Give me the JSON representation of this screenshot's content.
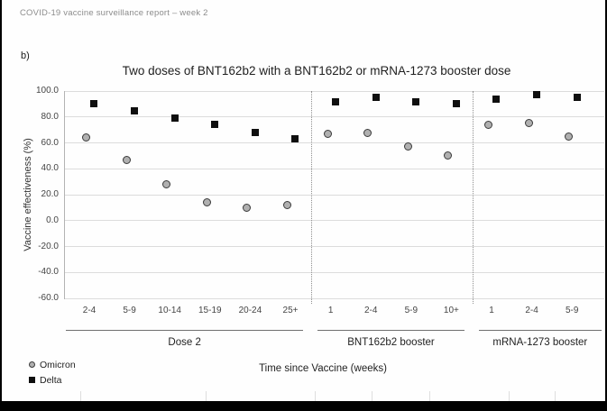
{
  "page": {
    "header": "COVID-19 vaccine surveillance report – week 2",
    "panel_label": "b)"
  },
  "chart_data": {
    "type": "scatter",
    "title": "Two doses of BNT162b2 with a BNT162b2 or mRNA-1273 booster dose",
    "xlabel": "Time since Vaccine (weeks)",
    "ylabel": "Vaccine effectiveness (%)",
    "ylim": [
      -60,
      100
    ],
    "ytick_labels": [
      "100.0",
      "80.0",
      "60.0",
      "40.0",
      "20.0",
      "0.0",
      "-20.0",
      "-40.0",
      "-60.0"
    ],
    "grid": true,
    "legend_position": "bottom-left",
    "categories": [
      "2-4",
      "5-9",
      "10-14",
      "15-19",
      "20-24",
      "25+",
      "1",
      "2-4",
      "5-9",
      "10+",
      "1",
      "2-4",
      "5-9"
    ],
    "groups": [
      {
        "label": "Dose 2",
        "from": 0,
        "to": 5
      },
      {
        "label": "BNT162b2 booster",
        "from": 6,
        "to": 9
      },
      {
        "label": "mRNA-1273 booster",
        "from": 10,
        "to": 12
      }
    ],
    "group_divider_style": "dotted-vertical",
    "series": [
      {
        "name": "Omicron",
        "marker": "circle",
        "fill": "#b0b0b0",
        "edge": "#3a3a3a",
        "values": [
          64,
          47,
          28,
          14,
          10,
          12,
          67,
          68,
          57,
          50,
          74,
          75,
          65
        ]
      },
      {
        "name": "Delta",
        "marker": "square",
        "fill": "#0f0f0f",
        "edge": "#0f0f0f",
        "values": [
          90,
          85,
          79,
          74,
          68,
          63,
          92,
          95,
          92,
          90,
          94,
          97,
          95
        ]
      }
    ]
  },
  "colors": {
    "gridline": "#dcdcdc",
    "axis": "#b3b3b3",
    "omicron_fill": "#b0b0b0",
    "omicron_edge": "#3a3a3a",
    "delta": "#0f0f0f",
    "header_text": "#8c8c8c"
  }
}
